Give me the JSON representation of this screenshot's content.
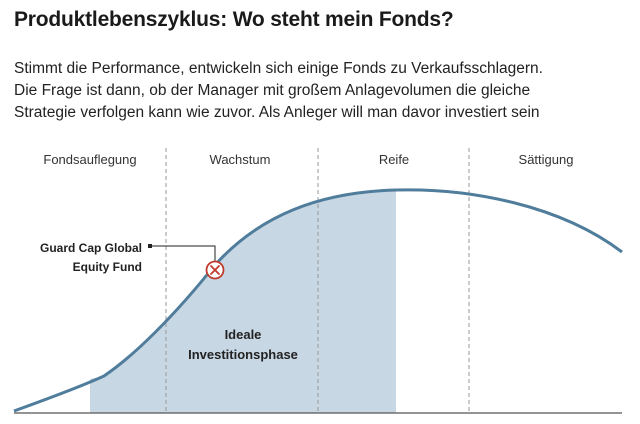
{
  "header": {
    "title": "Produktlebenszyklus: Wo steht mein Fonds?",
    "intro_lines": [
      "Stimmt die Performance, entwickeln sich einige Fonds zu Verkaufsschlagern.",
      "Die Frage ist dann, ob der Manager mit großem Anlagevolumen die gleiche",
      "Strategie verfolgen kann wie zuvor. Als Anleger will man davor investiert sein"
    ]
  },
  "diagram": {
    "phases": [
      "Fondsauflegung",
      "Wachstum",
      "Reife",
      "Sättigung"
    ],
    "zone_label_lines": [
      "Ideale",
      "Investitionsphase"
    ],
    "fund_marker": {
      "label_lines": [
        "Guard Cap Global",
        "Equity Fund"
      ],
      "icon": "x-circle-icon"
    },
    "colors": {
      "curve": "#4f7d9b",
      "zone_fill": "#c8d7e4",
      "marker": "#c0392b",
      "divider": "#999999",
      "baseline": "#555555"
    }
  }
}
